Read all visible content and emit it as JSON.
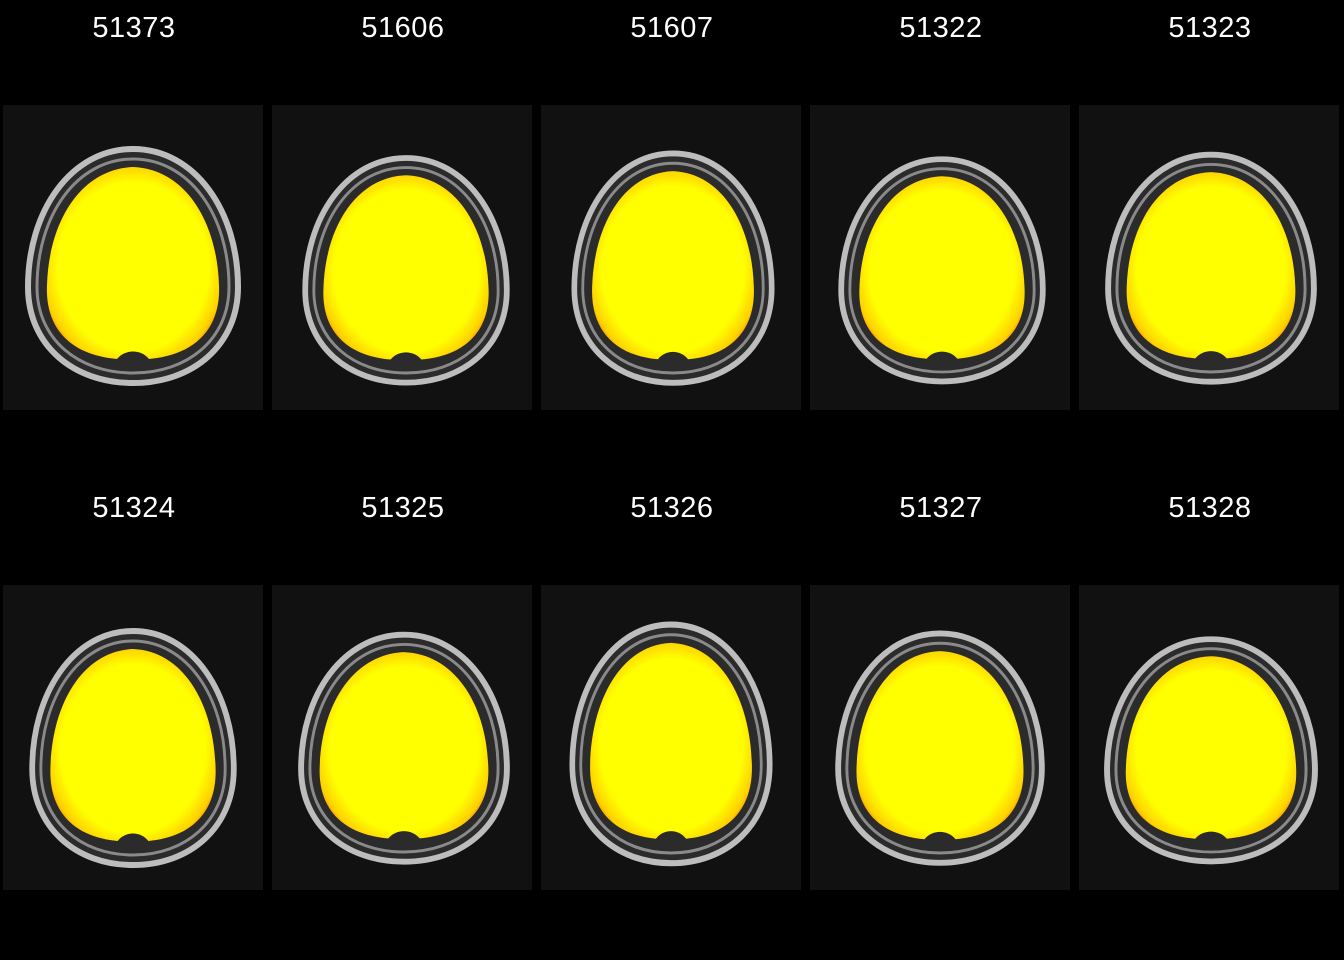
{
  "rows": [
    {
      "panels": [
        {
          "subject_id": "51373"
        },
        {
          "subject_id": "51606"
        },
        {
          "subject_id": "51607"
        },
        {
          "subject_id": "51322"
        },
        {
          "subject_id": "51323"
        }
      ]
    },
    {
      "panels": [
        {
          "subject_id": "51324"
        },
        {
          "subject_id": "51325"
        },
        {
          "subject_id": "51326"
        },
        {
          "subject_id": "51327"
        },
        {
          "subject_id": "51328"
        }
      ]
    }
  ],
  "colors": {
    "background": "#000000",
    "panel_background": "#111111",
    "skull_ring": "#bdbdbd",
    "overlay_core": "#ffff00",
    "overlay_edge": "#ff9a00"
  }
}
